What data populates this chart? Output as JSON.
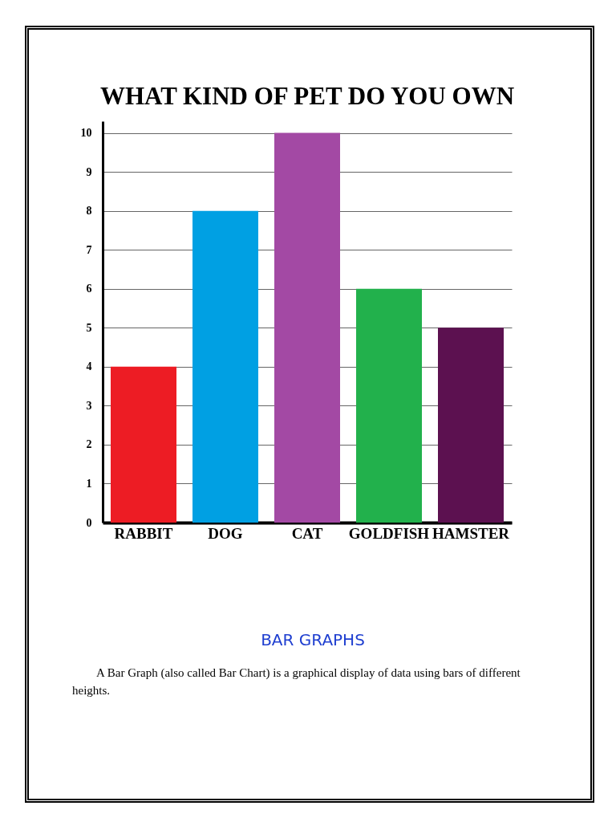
{
  "chart_data": {
    "type": "bar",
    "title": "WHAT KIND OF PET DO YOU OWN",
    "categories": [
      "RABBIT",
      "DOG",
      "CAT",
      "GOLDFISH",
      "HAMSTER"
    ],
    "values": [
      4,
      8,
      10,
      6,
      5
    ],
    "colors": [
      "#ed1c24",
      "#00a0e3",
      "#a349a4",
      "#22b14c",
      "#5c1150"
    ],
    "ylim": [
      0,
      10.3
    ],
    "yticks": [
      0,
      1,
      2,
      3,
      4,
      5,
      6,
      7,
      8,
      9,
      10
    ],
    "grid": "y",
    "annotations": [
      "BAR GRAPHS",
      "A Bar Graph (also called Bar Chart) is a graphical display of data using bars of different heights."
    ]
  }
}
